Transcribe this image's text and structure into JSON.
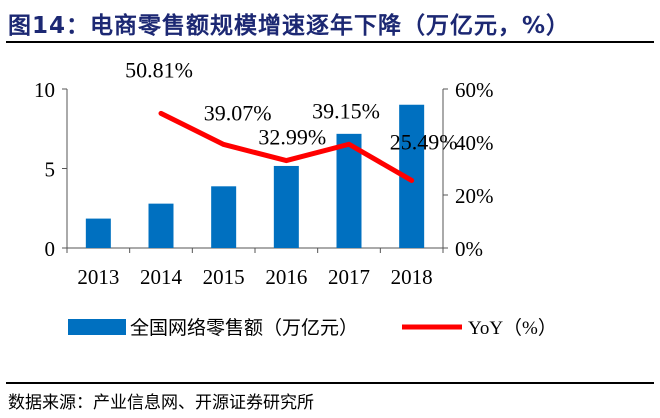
{
  "title": "图14：电商零售额规模增速逐年下降（万亿元，%）",
  "source": "数据来源：产业信息网、开源证券研究所",
  "chart_data": {
    "type": "bar+line",
    "categories": [
      "2013",
      "2014",
      "2015",
      "2016",
      "2017",
      "2018"
    ],
    "series": [
      {
        "name": "全国网络零售额（万亿元）",
        "type": "bar",
        "axis": "left",
        "color": "#0070c0",
        "values": [
          1.85,
          2.79,
          3.88,
          5.16,
          7.18,
          9.01
        ]
      },
      {
        "name": "YoY（%）",
        "type": "line",
        "axis": "right",
        "color": "#ff0000",
        "values": [
          null,
          50.81,
          39.07,
          32.99,
          39.15,
          25.49
        ],
        "labels": [
          "",
          "50.81%",
          "39.07%",
          "32.99%",
          "39.15%",
          "25.49%"
        ]
      }
    ],
    "left_axis": {
      "ylim": [
        0,
        10
      ],
      "ticks": [
        "0",
        "5",
        "10"
      ]
    },
    "right_axis": {
      "ylim": [
        0,
        60
      ],
      "ticks": [
        "0%",
        "20%",
        "40%",
        "60%"
      ]
    },
    "grid": false,
    "legend": "bottom"
  }
}
